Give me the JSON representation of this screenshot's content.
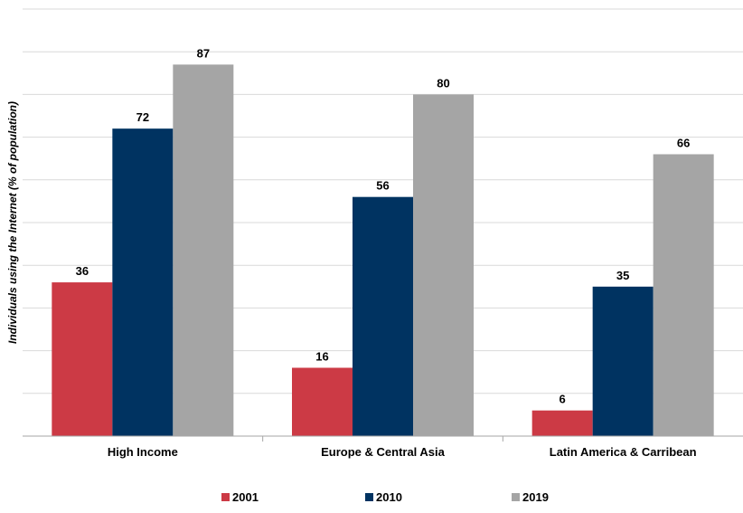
{
  "chart_data": {
    "type": "bar",
    "title": "",
    "xlabel": "",
    "ylabel": "Individuals using the Internet (% of population)",
    "ylim": [
      0,
      100
    ],
    "grid": true,
    "legend_position": "bottom",
    "categories": [
      "High Income",
      "Europe & Central Asia",
      "Latin America & Carribean"
    ],
    "series": [
      {
        "name": "2001",
        "color": "#cc3a45",
        "values": [
          36,
          16,
          6
        ]
      },
      {
        "name": "2010",
        "color": "#003361",
        "values": [
          72,
          56,
          35
        ]
      },
      {
        "name": "2019",
        "color": "#a5a5a5",
        "values": [
          87,
          80,
          66
        ]
      }
    ]
  }
}
